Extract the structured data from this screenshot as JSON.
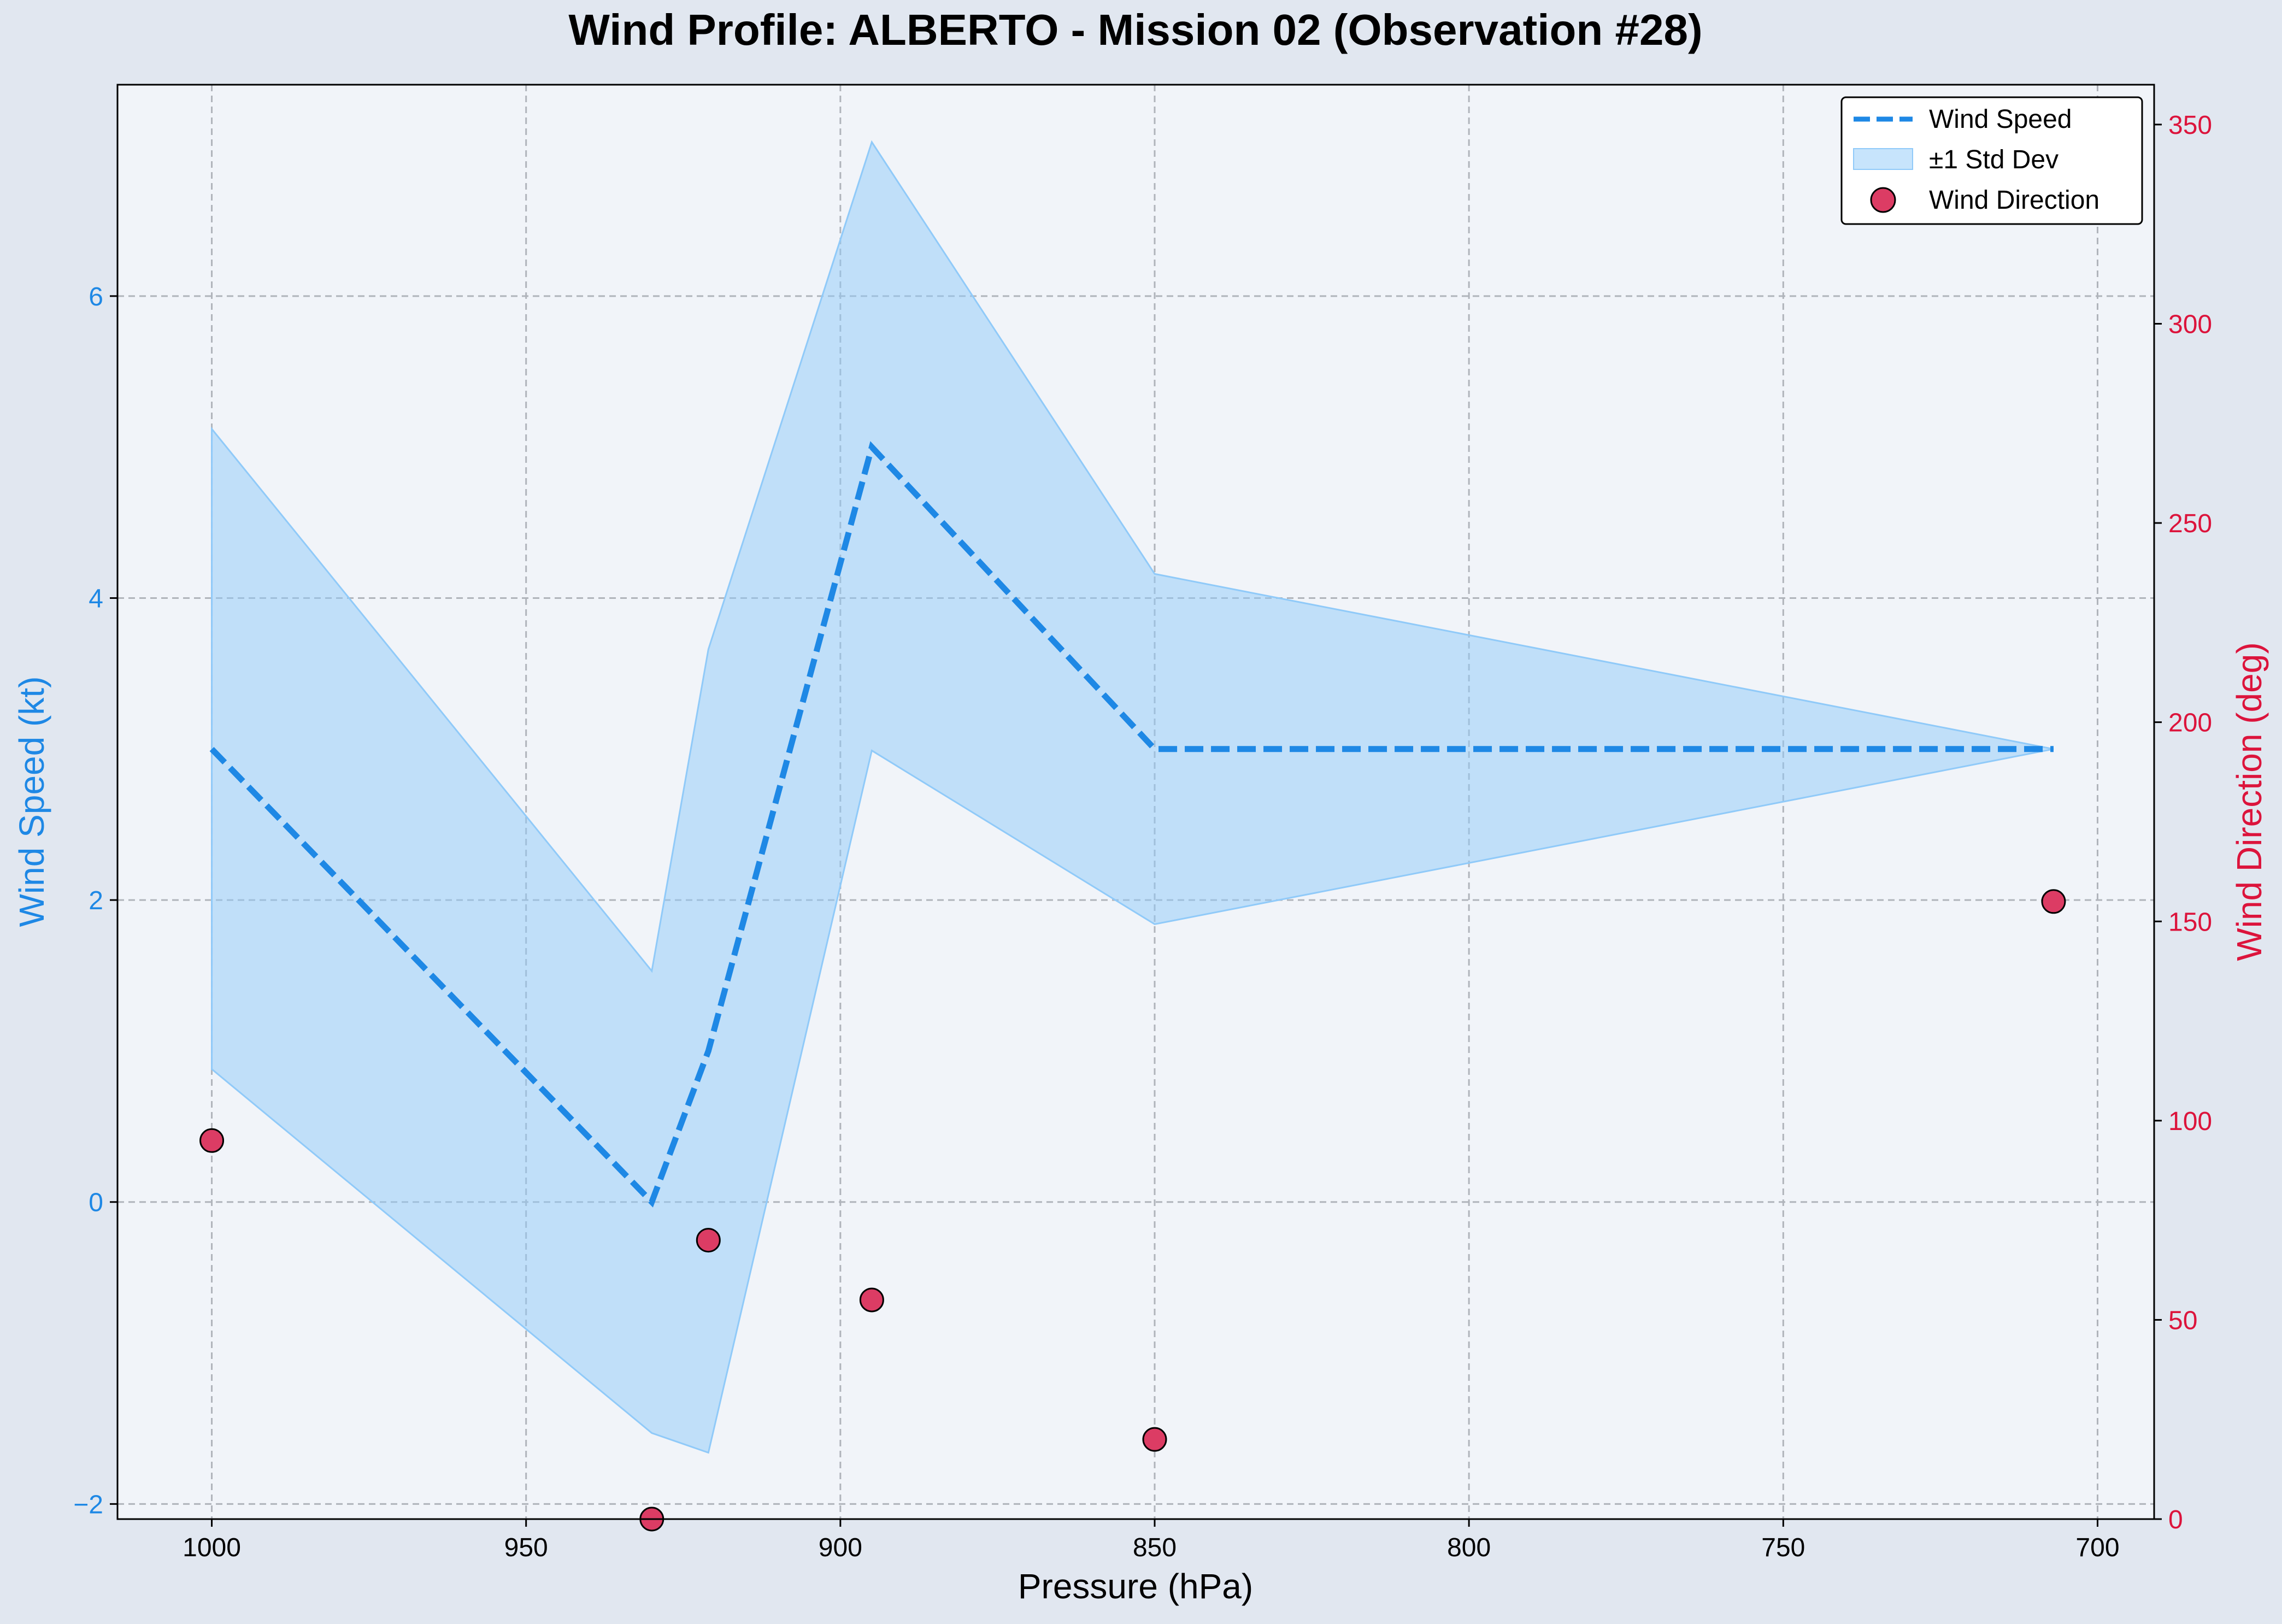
{
  "chart_data": {
    "type": "line",
    "title": "Wind Profile: ALBERTO - Mission 02 (Observation #28)",
    "xlabel": "Pressure (hPa)",
    "ylabel_left": "Wind Speed (kt)",
    "ylabel_right": "Wind Direction (deg)",
    "x_inverted": true,
    "xlim": [
      1015,
      691
    ],
    "ylim_left": [
      -2.1,
      7.4
    ],
    "ylim_right": [
      0,
      360
    ],
    "xticks": [
      1000,
      950,
      900,
      850,
      800,
      750,
      700
    ],
    "xtick_labels": [
      "1000",
      "950",
      "900",
      "850",
      "800",
      "750",
      "700"
    ],
    "yticks_left": [
      -2,
      0,
      2,
      4,
      6
    ],
    "ytick_labels_left": [
      "−2",
      "0",
      "2",
      "4",
      "6"
    ],
    "yticks_right": [
      0,
      50,
      100,
      150,
      200,
      250,
      300,
      350
    ],
    "ytick_labels_right": [
      "0",
      "50",
      "100",
      "150",
      "200",
      "250",
      "300",
      "350"
    ],
    "grid": true,
    "legend_position": "top-right",
    "colors": {
      "speed": "#1e88e5",
      "band": "#90caf9",
      "direction": "#dc3c64",
      "direction_axis": "#dc143c",
      "plot_bg": "#f1f4f9",
      "page_bg": "#e1e7f0"
    },
    "series": [
      {
        "name": "Wind Speed",
        "type": "line",
        "style": "dashed",
        "axis": "left",
        "x": [
          1000,
          930,
          921,
          895,
          850,
          707
        ],
        "y": [
          3,
          0,
          1,
          5,
          3,
          3
        ]
      },
      {
        "name": "±1 Std Dev",
        "type": "area",
        "axis": "left",
        "x": [
          1000,
          930,
          921,
          895,
          850,
          707
        ],
        "upper": [
          5.12,
          1.53,
          3.66,
          7.02,
          4.16,
          3.0
        ],
        "lower": [
          0.88,
          -1.53,
          -1.66,
          2.99,
          1.84,
          3.0
        ]
      },
      {
        "name": "Wind Direction",
        "type": "scatter",
        "axis": "right",
        "x": [
          1000,
          930,
          921,
          895,
          850,
          707
        ],
        "y": [
          95,
          0,
          70,
          55,
          20,
          155
        ]
      }
    ]
  }
}
